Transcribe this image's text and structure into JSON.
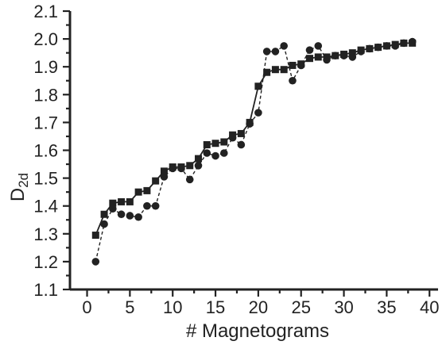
{
  "chart_data": {
    "type": "line",
    "title": "",
    "xlabel": "# Magnetograms",
    "ylabel_main": "D",
    "ylabel_sub": "2d",
    "xlim": [
      -2,
      41
    ],
    "ylim": [
      1.1,
      2.1
    ],
    "xticks": [
      0,
      5,
      10,
      15,
      20,
      25,
      30,
      35,
      40
    ],
    "xtick_labels": [
      "0",
      "5",
      "10",
      "15",
      "20",
      "25",
      "30",
      "35",
      "40"
    ],
    "yticks": [
      1.1,
      1.2,
      1.3,
      1.4,
      1.5,
      1.6,
      1.7,
      1.8,
      1.9,
      2.0,
      2.1
    ],
    "ytick_labels": [
      "1.1",
      "1.2",
      "1.3",
      "1.4",
      "1.5",
      "1.6",
      "1.7",
      "1.8",
      "1.9",
      "2.0",
      "2.1"
    ],
    "grid": false,
    "series": [
      {
        "marker": "square",
        "line_style": "solid",
        "color": "#222222",
        "x": [
          1,
          2,
          3,
          4,
          5,
          6,
          7,
          8,
          9,
          10,
          11,
          12,
          13,
          14,
          15,
          16,
          17,
          18,
          19,
          20,
          21,
          22,
          23,
          24,
          25,
          26,
          27,
          28,
          29,
          30,
          31,
          32,
          33,
          34,
          35,
          36,
          37,
          38
        ],
        "y": [
          1.295,
          1.37,
          1.41,
          1.415,
          1.415,
          1.45,
          1.455,
          1.49,
          1.525,
          1.54,
          1.54,
          1.545,
          1.57,
          1.62,
          1.625,
          1.63,
          1.655,
          1.66,
          1.7,
          1.83,
          1.88,
          1.89,
          1.89,
          1.905,
          1.91,
          1.93,
          1.935,
          1.935,
          1.94,
          1.945,
          1.95,
          1.96,
          1.965,
          1.97,
          1.975,
          1.98,
          1.985,
          1.985
        ]
      },
      {
        "marker": "circle",
        "line_style": "dashed",
        "color": "#222222",
        "x": [
          1,
          2,
          3,
          4,
          5,
          6,
          7,
          8,
          9,
          10,
          11,
          12,
          13,
          14,
          15,
          16,
          17,
          18,
          19,
          20,
          21,
          22,
          23,
          24,
          25,
          26,
          27,
          28,
          29,
          30,
          31,
          32,
          33,
          34,
          35,
          36,
          37,
          38
        ],
        "y": [
          1.2,
          1.335,
          1.39,
          1.37,
          1.365,
          1.36,
          1.4,
          1.4,
          1.505,
          1.535,
          1.535,
          1.495,
          1.545,
          1.59,
          1.58,
          1.59,
          1.645,
          1.62,
          1.695,
          1.735,
          1.955,
          1.955,
          1.975,
          1.85,
          1.905,
          1.96,
          1.975,
          1.925,
          1.94,
          1.94,
          1.935,
          1.955,
          1.965,
          1.97,
          1.975,
          1.975,
          1.985,
          1.99
        ]
      }
    ]
  }
}
